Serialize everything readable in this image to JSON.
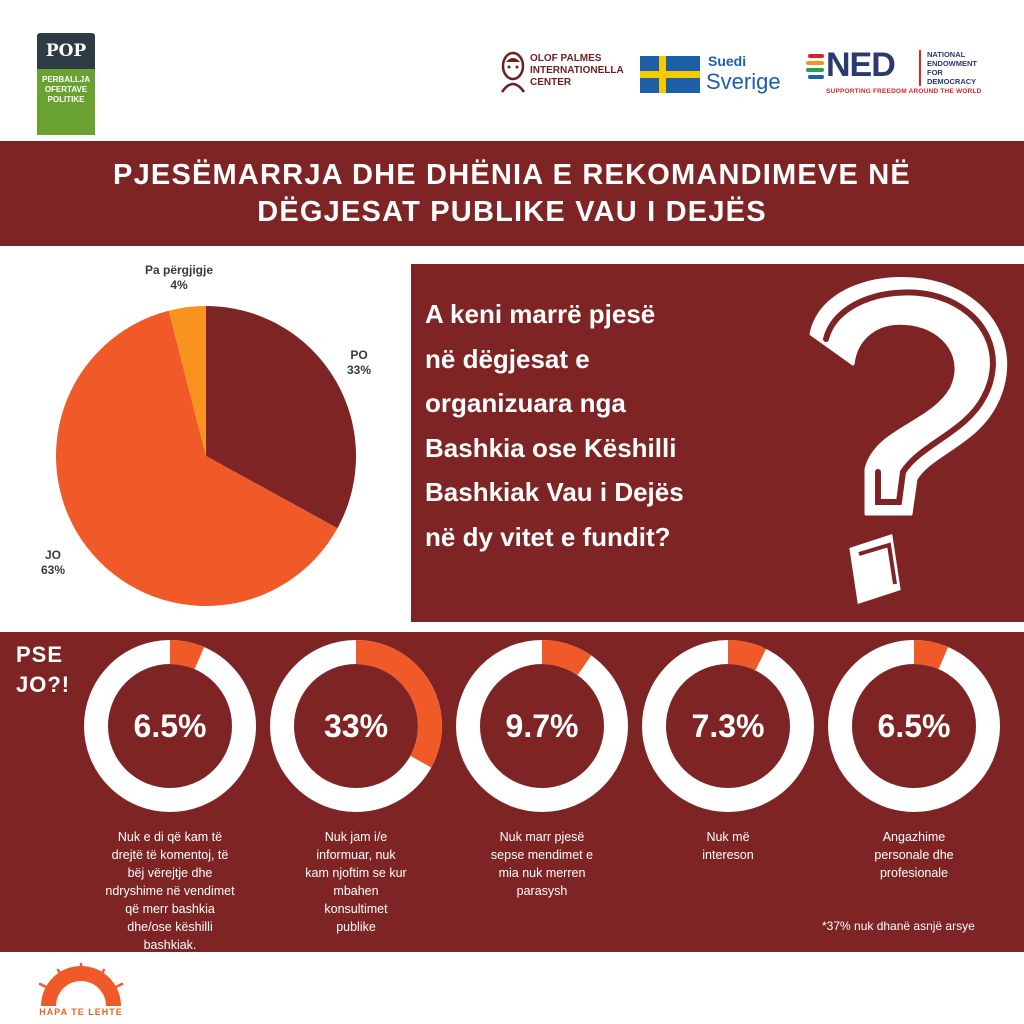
{
  "logos": {
    "pop": {
      "top": "POP",
      "bottom": [
        "PERBALLJA",
        "OFERTAVE",
        "POLITIKE"
      ]
    },
    "palme": [
      "OLOF PALMES",
      "INTERNATIONELLA",
      "CENTER"
    ],
    "sweden": {
      "line1": "Suedi",
      "line2": "Sverige"
    },
    "ned": {
      "mark": "NED",
      "full": [
        "NATIONAL",
        "ENDOWMENT",
        "FOR",
        "DEMOCRACY"
      ],
      "tagline": "SUPPORTING FREEDOM AROUND THE WORLD"
    },
    "sunrise": "HAPA TE LEHTE"
  },
  "title": {
    "line1": "PJESËMARRJA DHE DHËNIA E REKOMANDIMEVE NË",
    "line2": "DËGJESAT PUBLIKE VAU I DEJËS"
  },
  "question": {
    "lines": [
      "A keni marrë pjesë",
      "në dëgjesat e",
      "organizuara nga",
      "Bashkia ose Këshilli",
      "Bashkiak Vau i Dejës",
      "në dy vitet e fundit?"
    ]
  },
  "why_not": {
    "lines": [
      "PSE",
      "JO?!"
    ]
  },
  "footnote": "*37% nuk dhanë asnjë arsye",
  "colors": {
    "maroon": "#7e2424",
    "orange": "#f05a28",
    "light_orange": "#f7931e",
    "white": "#ffffff"
  },
  "chart_data": [
    {
      "type": "pie",
      "slices": [
        {
          "name": "PO",
          "label": "33%",
          "value": 33,
          "color": "#7e2424"
        },
        {
          "name": "JO",
          "label": "63%",
          "value": 63,
          "color": "#f05a28"
        },
        {
          "name": "Pa përgjigje",
          "label": "4%",
          "value": 4,
          "color": "#f7931e"
        }
      ]
    },
    {
      "type": "donut",
      "items": [
        {
          "label": "6.5%",
          "value": 6.5,
          "caption": [
            "Nuk e di që kam të",
            "drejtë të komentoj, të",
            "bëj vërejtje dhe",
            "ndryshime në vendimet",
            "që merr bashkia",
            "dhe/ose këshilli",
            "bashkiak."
          ]
        },
        {
          "label": "33%",
          "value": 33,
          "caption": [
            "Nuk jam i/e",
            "informuar, nuk",
            "kam njoftim se kur",
            "mbahen",
            "konsultimet",
            "publike"
          ]
        },
        {
          "label": "9.7%",
          "value": 9.7,
          "caption": [
            "Nuk marr pjesë",
            "sepse mendimet e",
            "mia nuk merren",
            "parasysh"
          ]
        },
        {
          "label": "7.3%",
          "value": 7.3,
          "caption": [
            "Nuk më",
            "intereson"
          ]
        },
        {
          "label": "6.5%",
          "value": 6.5,
          "caption": [
            "Angazhime",
            "personale dhe",
            "profesionale"
          ]
        }
      ]
    }
  ]
}
